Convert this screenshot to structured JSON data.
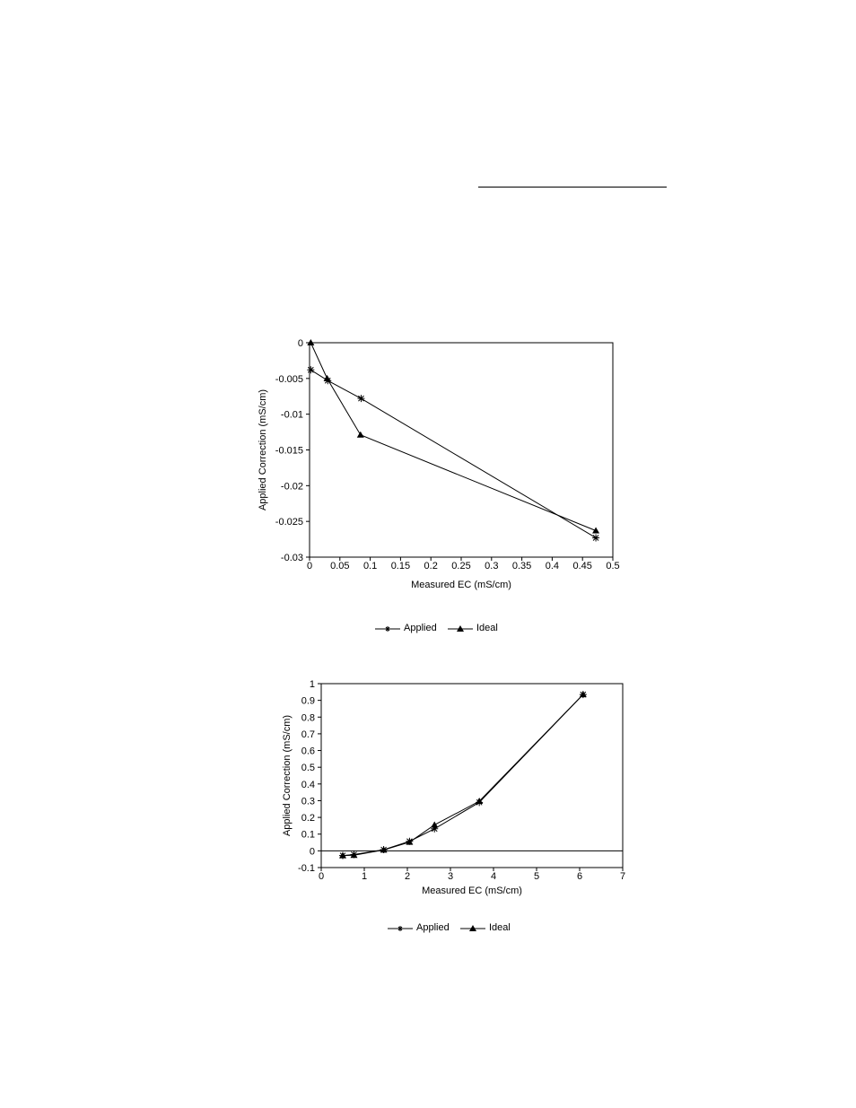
{
  "chart_data": [
    {
      "type": "line",
      "xlabel": "Measured EC (mS/cm)",
      "ylabel": "Applied Correction (mS/cm)",
      "xlim": [
        0,
        0.5
      ],
      "ylim": [
        -0.03,
        0
      ],
      "x_ticks": [
        "0",
        "0.05",
        "0.1",
        "0.15",
        "0.2",
        "0.25",
        "0.3",
        "0.35",
        "0.4",
        "0.45",
        "0.5"
      ],
      "y_ticks": [
        "0",
        "-0.005",
        "-0.01",
        "-0.015",
        "-0.02",
        "-0.025",
        "-0.03"
      ],
      "legend_placement": "bottom",
      "zero_line": false,
      "series": [
        {
          "name": "Applied",
          "marker": "asterisk",
          "points": [
            [
              0.002,
              -0.0038
            ],
            [
              0.03,
              -0.0053
            ],
            [
              0.085,
              -0.0078
            ],
            [
              0.472,
              -0.0273
            ]
          ]
        },
        {
          "name": "Ideal",
          "marker": "triangle",
          "points": [
            [
              0.002,
              0
            ],
            [
              0.029,
              -0.005
            ],
            [
              0.084,
              -0.0129
            ],
            [
              0.472,
              -0.0263
            ]
          ]
        }
      ]
    },
    {
      "type": "line",
      "xlabel": "Measured EC (mS/cm)",
      "ylabel": "Applied Correction (mS/cm)",
      "xlim": [
        0,
        7
      ],
      "ylim": [
        -0.1,
        1
      ],
      "x_ticks": [
        "0",
        "1",
        "2",
        "3",
        "4",
        "5",
        "6",
        "7"
      ],
      "y_ticks": [
        "1",
        "0.9",
        "0.8",
        "0.7",
        "0.6",
        "0.5",
        "0.4",
        "0.3",
        "0.2",
        "0.1",
        "0",
        "-0.1"
      ],
      "legend_placement": "bottom",
      "zero_line": true,
      "series": [
        {
          "name": "Applied",
          "marker": "asterisk",
          "points": [
            [
              0.5,
              -0.028
            ],
            [
              0.76,
              -0.022
            ],
            [
              1.45,
              0.007
            ],
            [
              2.05,
              0.057
            ],
            [
              2.63,
              0.132
            ],
            [
              3.67,
              0.29
            ],
            [
              6.08,
              0.935
            ]
          ]
        },
        {
          "name": "Ideal",
          "marker": "triangle",
          "points": [
            [
              0.5,
              -0.028
            ],
            [
              0.76,
              -0.026
            ],
            [
              1.45,
              0.005
            ],
            [
              2.05,
              0.052
            ],
            [
              2.63,
              0.155
            ],
            [
              3.67,
              0.297
            ],
            [
              6.08,
              0.935
            ]
          ]
        }
      ]
    }
  ]
}
